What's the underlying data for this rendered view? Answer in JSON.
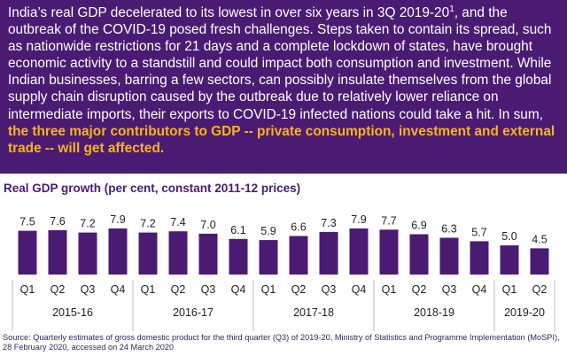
{
  "summary": {
    "text_before_sup": "India’s real GDP decelerated to its lowest in over six years in 3Q 2019-20",
    "sup": "1",
    "text_after_sup": ", and the outbreak of the COVID-19 posed fresh challenges. Steps taken to contain its spread, such as nationwide restrictions for 21 days and a complete lockdown of states, have brought economic activity to a standstill and could impact both consumption and investment. While Indian businesses, barring a few sectors, can possibly insulate themselves from the global supply chain disruption caused by the outbreak due to relatively lower reliance on intermediate imports, their exports to COVID-19 infected nations could take a hit. In sum, ",
    "highlight": "the three major contributors to GDP -- private consumption, investment and external trade -- will get affected."
  },
  "chart_data": {
    "type": "bar",
    "title": "Real GDP growth (per cent, constant 2011-12 prices)",
    "categories": [
      "Q1",
      "Q2",
      "Q3",
      "Q4",
      "Q1",
      "Q2",
      "Q3",
      "Q4",
      "Q1",
      "Q2",
      "Q3",
      "Q4",
      "Q1",
      "Q2",
      "Q3",
      "Q4",
      "Q1",
      "Q2"
    ],
    "groups": [
      {
        "label": "2015-16",
        "count": 4
      },
      {
        "label": "2016-17",
        "count": 4
      },
      {
        "label": "2017-18",
        "count": 4
      },
      {
        "label": "2018-19",
        "count": 4
      },
      {
        "label": "2019-20",
        "count": 2
      }
    ],
    "values": [
      7.5,
      7.6,
      7.2,
      7.9,
      7.2,
      7.4,
      7.0,
      6.1,
      5.9,
      6.6,
      7.3,
      7.9,
      7.7,
      6.9,
      6.3,
      5.7,
      5.0,
      4.5
    ],
    "ylim": [
      0,
      8.5
    ],
    "grid": false,
    "colors": {
      "bar": "#4b1b73",
      "text": "#1f1f1f",
      "separator": "#bdbdbd"
    }
  },
  "source": "Source: Quarterly estimates of gross domestic product for the third quarter (Q3) of 2019-20, Ministry of Statistics and Programme Implementation (MoSPI), 28 February 2020, accessed on 24 March 2020"
}
